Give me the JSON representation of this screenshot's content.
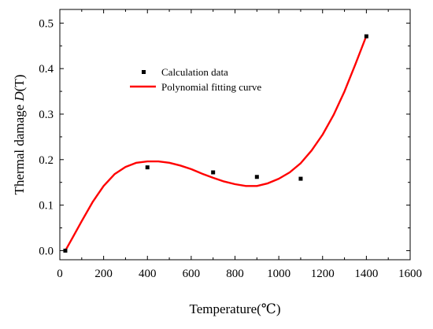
{
  "chart_data": {
    "type": "scatter",
    "xlabel": "Temperature(℃)",
    "ylabel_prefix": "Thermal damage ",
    "ylabel_var": "D",
    "ylabel_suffix": "(T)",
    "xlim": [
      0,
      1600
    ],
    "ylim": [
      -0.02,
      0.53
    ],
    "xticks": [
      0,
      200,
      400,
      600,
      800,
      1000,
      1200,
      1400,
      1600
    ],
    "yticks": [
      0.0,
      0.1,
      0.2,
      0.3,
      0.4,
      0.5
    ],
    "xtick_labels": [
      "0",
      "200",
      "400",
      "600",
      "800",
      "1000",
      "1200",
      "1400",
      "1600"
    ],
    "ytick_labels": [
      "0.0",
      "0.1",
      "0.2",
      "0.3",
      "0.4",
      "0.5"
    ],
    "grid": false,
    "legend_position": "upper-left-center",
    "series": [
      {
        "name": "Calculation data",
        "kind": "scatter",
        "color": "#000000",
        "marker": "square",
        "x": [
          25,
          400,
          700,
          900,
          1100,
          1400
        ],
        "y": [
          0.0,
          0.183,
          0.172,
          0.162,
          0.158,
          0.471
        ]
      },
      {
        "name": "Polynomial fitting curve",
        "kind": "line",
        "color": "#ff0000",
        "x": [
          25,
          60,
          100,
          150,
          200,
          250,
          300,
          350,
          400,
          450,
          500,
          550,
          600,
          650,
          700,
          750,
          800,
          850,
          900,
          950,
          1000,
          1050,
          1100,
          1150,
          1200,
          1250,
          1300,
          1350,
          1400
        ],
        "y": [
          0.0,
          0.03,
          0.065,
          0.107,
          0.142,
          0.168,
          0.184,
          0.193,
          0.196,
          0.196,
          0.193,
          0.187,
          0.179,
          0.169,
          0.16,
          0.152,
          0.146,
          0.142,
          0.142,
          0.148,
          0.158,
          0.172,
          0.192,
          0.22,
          0.255,
          0.298,
          0.35,
          0.41,
          0.472
        ]
      }
    ]
  }
}
